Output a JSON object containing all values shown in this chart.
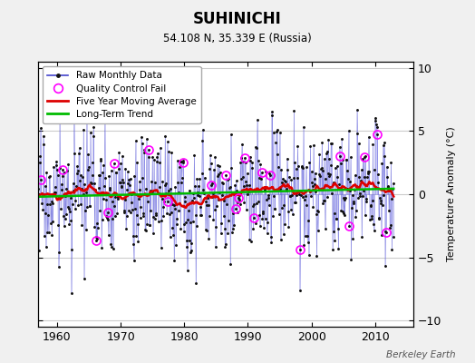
{
  "title": "SUHINICHI",
  "subtitle": "54.108 N, 35.339 E (Russia)",
  "ylabel": "Temperature Anomaly (°C)",
  "credit": "Berkeley Earth",
  "xlim": [
    1957,
    2016
  ],
  "ylim": [
    -10.5,
    10.5
  ],
  "yticks": [
    -10,
    -5,
    0,
    5,
    10
  ],
  "xticks": [
    1960,
    1970,
    1980,
    1990,
    2000,
    2010
  ],
  "raw_line_color": "#4444cc",
  "raw_stem_color": "#8888ee",
  "trend_color": "#00bb00",
  "moving_avg_color": "#dd0000",
  "qc_fail_color": "#ff00ff",
  "dot_color": "#111111",
  "background_color": "#f0f0f0",
  "plot_bg_color": "#ffffff",
  "grid_color": "#cccccc",
  "seed": 17,
  "n_months": 672,
  "start_year": 1957.0,
  "months_per_year": 12
}
